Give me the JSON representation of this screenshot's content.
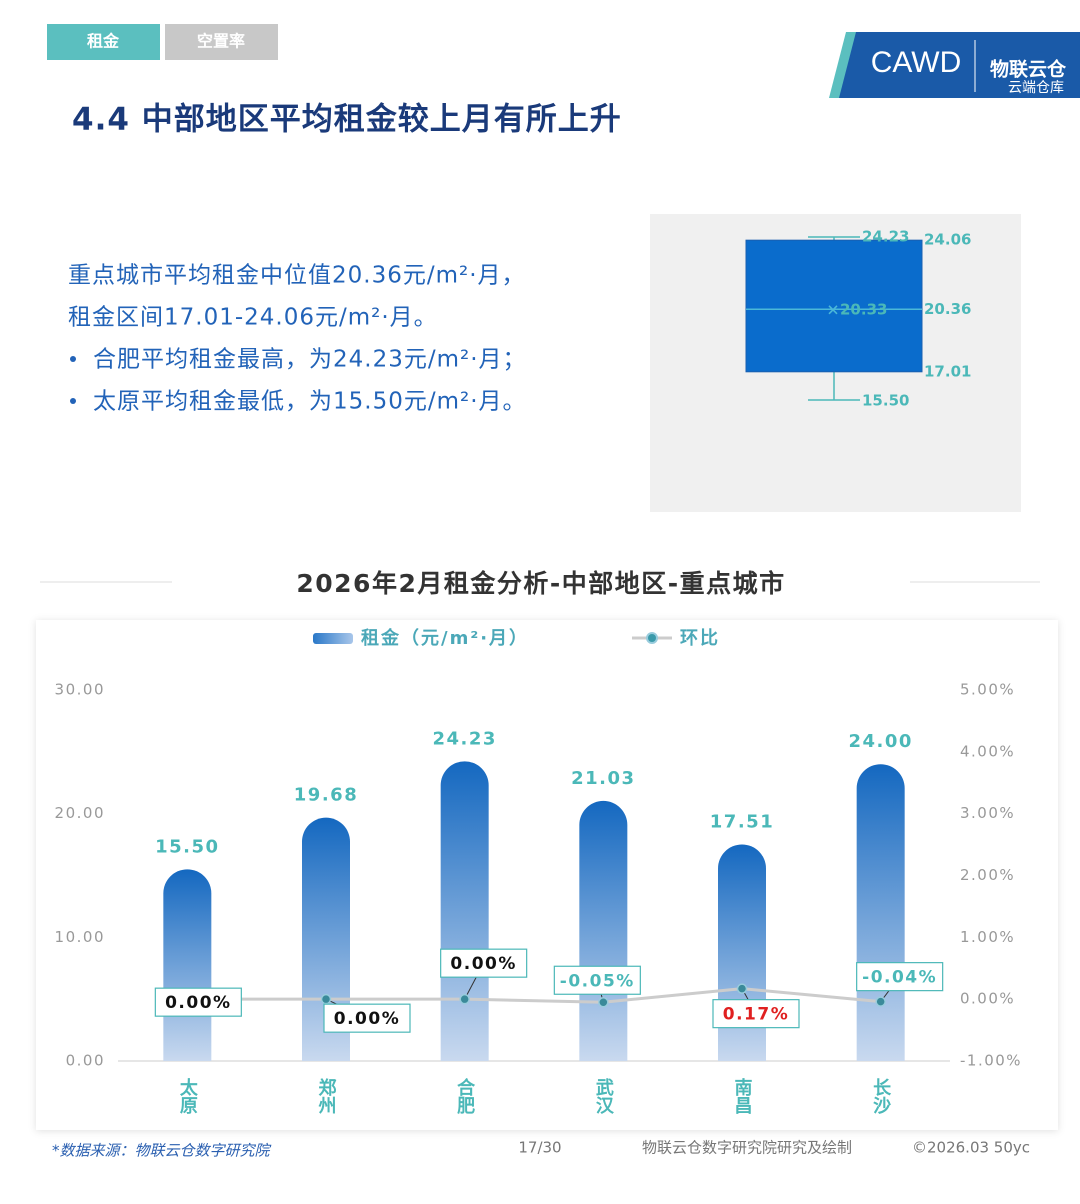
{
  "tabs": [
    "租金",
    "空置率"
  ],
  "logo": {
    "brand": "CAWD",
    "name": "物联云仓",
    "tagline": "云端仓库"
  },
  "heading": "4.4 中部地区平均租金较上月有所上升",
  "summary": {
    "lines": [
      "重点城市平均租金中位值20.36元/m²·月，",
      "租金区间17.01-24.06元/m²·月。"
    ],
    "bullets": [
      "合肥平均租金最高，为24.23元/m²·月；",
      "太原平均租金最低，为15.50元/m²·月。"
    ]
  },
  "chart_data": [
    {
      "type": "box",
      "color": "#0a6ccc",
      "values": {
        "max": 24.23,
        "q3": 24.06,
        "median": 20.36,
        "mean": 20.33,
        "q1": 17.01,
        "min": 15.5
      },
      "value_labels": {
        "min": "15.50"
      }
    },
    {
      "type": "bar",
      "title": "2026年2月租金分析-中部地区-重点城市",
      "categories": [
        "太原",
        "郑州",
        "合肥",
        "武汉",
        "南昌",
        "长沙"
      ],
      "series": [
        {
          "name": "租金（元/m²·月）",
          "type": "bar",
          "color": "#1a6fc4",
          "values": [
            15.5,
            19.68,
            24.23,
            21.03,
            17.51,
            24.0
          ],
          "value_labels": [
            "15.50",
            "19.68",
            "24.23",
            "21.03",
            "17.51",
            "24.00"
          ]
        },
        {
          "name": "环比",
          "type": "line",
          "axis": "y2",
          "color": "#cccccc",
          "values": [
            0,
            0,
            0,
            -0.05,
            0.17,
            -0.04
          ],
          "value_labels": [
            "0.00%",
            "0.00%",
            "0.00%",
            "-0.05%",
            "0.17%",
            "-0.04%"
          ],
          "label_colors": [
            "#111111",
            "#111111",
            "#111111",
            "#4bb8b8",
            "#e02020",
            "#4bb8b8"
          ]
        }
      ],
      "ylim": [
        0,
        30
      ],
      "yticks": [
        {
          "value": 0,
          "label": "0.00"
        },
        {
          "value": 10,
          "label": "10.00"
        },
        {
          "value": 20,
          "label": "20.00"
        },
        {
          "value": 30,
          "label": "30.00"
        }
      ],
      "y2lim": [
        -1,
        5
      ],
      "y2ticks": [
        {
          "value": -1,
          "label": "-1.00%"
        },
        {
          "value": 0,
          "label": "0.00%"
        },
        {
          "value": 1,
          "label": "1.00%"
        },
        {
          "value": 2,
          "label": "2.00%"
        },
        {
          "value": 3,
          "label": "3.00%"
        },
        {
          "value": 4,
          "label": "4.00%"
        },
        {
          "value": 5,
          "label": "5.00%"
        }
      ],
      "grid": false
    }
  ],
  "footer": {
    "source": "*数据来源：物联云仓数字研究院",
    "page": "17/30",
    "credit": "物联云仓数字研究院研究及绘制",
    "copyright": "©2026.03 50yc"
  }
}
